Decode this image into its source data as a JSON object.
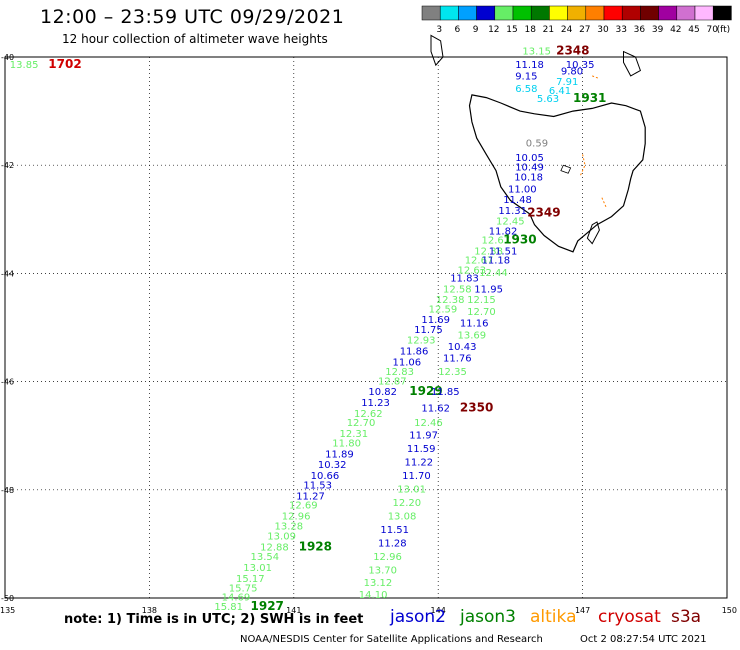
{
  "header": {
    "title": "12:00 – 23:59 UTC 09/29/2021",
    "subtitle": "12 hour collection of altimeter wave heights"
  },
  "legend": {
    "unit": "(ft)",
    "steps": [
      {
        "label": "3",
        "color": "#808080"
      },
      {
        "label": "6",
        "color": "#00e5ee"
      },
      {
        "label": "9",
        "color": "#00a0ff"
      },
      {
        "label": "12",
        "color": "#0000d0"
      },
      {
        "label": "15",
        "color": "#66ee66"
      },
      {
        "label": "18",
        "color": "#00c000"
      },
      {
        "label": "21",
        "color": "#007800"
      },
      {
        "label": "24",
        "color": "#ffff00"
      },
      {
        "label": "27",
        "color": "#f0b000"
      },
      {
        "label": "30",
        "color": "#ff7f00"
      },
      {
        "label": "33",
        "color": "#ff0000"
      },
      {
        "label": "36",
        "color": "#b00000"
      },
      {
        "label": "39",
        "color": "#700000"
      },
      {
        "label": "42",
        "color": "#a000a0"
      },
      {
        "label": "45",
        "color": "#d070d0"
      },
      {
        "label": "70",
        "color": "#ffb8ff"
      },
      {
        "label": "",
        "color": "#000000"
      }
    ]
  },
  "map": {
    "lat_labels": [
      "-40",
      "-42",
      "-44",
      "-46",
      "-48",
      "-50"
    ],
    "lon_labels": [
      "135",
      "138",
      "141",
      "144",
      "147",
      "150"
    ],
    "colors": {
      "track_green": "#66ee66",
      "track_blue": "#0000d0",
      "cyan": "#00d0f0",
      "grey": "#808080",
      "time_green": "#008000",
      "time_red": "#800000",
      "time_red2": "#d00000",
      "coast_orange": "#ff7f00"
    },
    "labels": [
      {
        "text": "13.85",
        "lat": -40.2,
        "lon": 135.1,
        "c": "track_green"
      },
      {
        "text": "1702",
        "lat": -40.2,
        "lon": 135.9,
        "c": "time_red2",
        "bold": true
      },
      {
        "text": "13.15",
        "lat": -39.95,
        "lon": 145.75,
        "c": "track_green"
      },
      {
        "text": "2348",
        "lat": -39.95,
        "lon": 146.45,
        "c": "time_red",
        "bold": true
      },
      {
        "text": "11.18",
        "lat": -40.2,
        "lon": 145.6,
        "c": "track_blue"
      },
      {
        "text": "10.35",
        "lat": -40.2,
        "lon": 146.65,
        "c": "track_blue"
      },
      {
        "text": "9.15",
        "lat": -40.42,
        "lon": 145.6,
        "c": "track_blue"
      },
      {
        "text": "9.80",
        "lat": -40.32,
        "lon": 146.55,
        "c": "track_blue"
      },
      {
        "text": "7.91",
        "lat": -40.52,
        "lon": 146.45,
        "c": "cyan"
      },
      {
        "text": "6.58",
        "lat": -40.65,
        "lon": 145.6,
        "c": "cyan"
      },
      {
        "text": "6.41",
        "lat": -40.68,
        "lon": 146.3,
        "c": "cyan"
      },
      {
        "text": "5.63",
        "lat": -40.83,
        "lon": 146.05,
        "c": "cyan"
      },
      {
        "text": "1931",
        "lat": -40.83,
        "lon": 146.8,
        "c": "time_green",
        "bold": true
      },
      {
        "text": "0.59",
        "lat": -41.65,
        "lon": 145.82,
        "c": "grey"
      },
      {
        "text": "10.05",
        "lat": -41.92,
        "lon": 145.6,
        "c": "track_blue"
      },
      {
        "text": "10.49",
        "lat": -42.1,
        "lon": 145.6,
        "c": "track_blue"
      },
      {
        "text": "10.18",
        "lat": -42.28,
        "lon": 145.58,
        "c": "track_blue"
      },
      {
        "text": "11.00",
        "lat": -42.5,
        "lon": 145.45,
        "c": "track_blue"
      },
      {
        "text": "11.48",
        "lat": -42.7,
        "lon": 145.35,
        "c": "track_blue"
      },
      {
        "text": "11.31",
        "lat": -42.9,
        "lon": 145.25,
        "c": "track_blue"
      },
      {
        "text": "2349",
        "lat": -42.95,
        "lon": 145.85,
        "c": "time_red",
        "bold": true
      },
      {
        "text": "12.45",
        "lat": -43.1,
        "lon": 145.2,
        "c": "track_green"
      },
      {
        "text": "11.82",
        "lat": -43.28,
        "lon": 145.05,
        "c": "track_blue"
      },
      {
        "text": "12.67",
        "lat": -43.45,
        "lon": 144.9,
        "c": "track_green"
      },
      {
        "text": "1930",
        "lat": -43.45,
        "lon": 145.35,
        "c": "time_green",
        "bold": true
      },
      {
        "text": "12.38",
        "lat": -43.65,
        "lon": 144.75,
        "c": "track_green"
      },
      {
        "text": "11.51",
        "lat": -43.65,
        "lon": 145.05,
        "c": "track_blue"
      },
      {
        "text": "12.67",
        "lat": -43.82,
        "lon": 144.55,
        "c": "track_green"
      },
      {
        "text": "11.18",
        "lat": -43.82,
        "lon": 144.9,
        "c": "track_blue"
      },
      {
        "text": "12.63",
        "lat": -44.0,
        "lon": 144.4,
        "c": "track_green"
      },
      {
        "text": "12.44",
        "lat": -44.05,
        "lon": 144.85,
        "c": "track_green"
      },
      {
        "text": "11.83",
        "lat": -44.15,
        "lon": 144.25,
        "c": "track_blue"
      },
      {
        "text": "12.58",
        "lat": -44.35,
        "lon": 144.1,
        "c": "track_green"
      },
      {
        "text": "11.95",
        "lat": -44.35,
        "lon": 144.75,
        "c": "track_blue"
      },
      {
        "text": "12.38",
        "lat": -44.55,
        "lon": 143.95,
        "c": "track_green"
      },
      {
        "text": "12.15",
        "lat": -44.55,
        "lon": 144.6,
        "c": "track_green"
      },
      {
        "text": "12.59",
        "lat": -44.72,
        "lon": 143.8,
        "c": "track_green"
      },
      {
        "text": "12.70",
        "lat": -44.77,
        "lon": 144.6,
        "c": "track_green"
      },
      {
        "text": "11.69",
        "lat": -44.92,
        "lon": 143.65,
        "c": "track_blue"
      },
      {
        "text": "11.16",
        "lat": -44.98,
        "lon": 144.45,
        "c": "track_blue"
      },
      {
        "text": "11.75",
        "lat": -45.1,
        "lon": 143.5,
        "c": "track_blue"
      },
      {
        "text": "13.69",
        "lat": -45.2,
        "lon": 144.4,
        "c": "track_green"
      },
      {
        "text": "12.93",
        "lat": -45.3,
        "lon": 143.35,
        "c": "track_green"
      },
      {
        "text": "10.43",
        "lat": -45.42,
        "lon": 144.2,
        "c": "track_blue"
      },
      {
        "text": "11.86",
        "lat": -45.5,
        "lon": 143.2,
        "c": "track_blue"
      },
      {
        "text": "11.06",
        "lat": -45.7,
        "lon": 143.05,
        "c": "track_blue"
      },
      {
        "text": "11.76",
        "lat": -45.63,
        "lon": 144.1,
        "c": "track_blue"
      },
      {
        "text": "12.83",
        "lat": -45.88,
        "lon": 142.9,
        "c": "track_green"
      },
      {
        "text": "12.35",
        "lat": -45.88,
        "lon": 144.0,
        "c": "track_green"
      },
      {
        "text": "12.87",
        "lat": -46.05,
        "lon": 142.75,
        "c": "track_green"
      },
      {
        "text": "10.82",
        "lat": -46.25,
        "lon": 142.55,
        "c": "track_blue"
      },
      {
        "text": "1929",
        "lat": -46.25,
        "lon": 143.4,
        "c": "time_green",
        "bold": true
      },
      {
        "text": "11.85",
        "lat": -46.25,
        "lon": 143.85,
        "c": "track_blue"
      },
      {
        "text": "11.23",
        "lat": -46.45,
        "lon": 142.4,
        "c": "track_blue"
      },
      {
        "text": "11.62",
        "lat": -46.55,
        "lon": 143.65,
        "c": "track_blue"
      },
      {
        "text": "2350",
        "lat": -46.55,
        "lon": 144.45,
        "c": "time_red",
        "bold": true
      },
      {
        "text": "12.62",
        "lat": -46.65,
        "lon": 142.25,
        "c": "track_green"
      },
      {
        "text": "12.70",
        "lat": -46.82,
        "lon": 142.1,
        "c": "track_green"
      },
      {
        "text": "12.46",
        "lat": -46.82,
        "lon": 143.5,
        "c": "track_green"
      },
      {
        "text": "12.31",
        "lat": -47.02,
        "lon": 141.95,
        "c": "track_green"
      },
      {
        "text": "11.97",
        "lat": -47.05,
        "lon": 143.4,
        "c": "track_blue"
      },
      {
        "text": "11.80",
        "lat": -47.2,
        "lon": 141.8,
        "c": "track_green"
      },
      {
        "text": "11.59",
        "lat": -47.3,
        "lon": 143.35,
        "c": "track_blue"
      },
      {
        "text": "11.89",
        "lat": -47.4,
        "lon": 141.65,
        "c": "track_blue"
      },
      {
        "text": "10.32",
        "lat": -47.6,
        "lon": 141.5,
        "c": "track_blue"
      },
      {
        "text": "11.22",
        "lat": -47.55,
        "lon": 143.3,
        "c": "track_blue"
      },
      {
        "text": "10.66",
        "lat": -47.8,
        "lon": 141.35,
        "c": "track_blue"
      },
      {
        "text": "11.70",
        "lat": -47.8,
        "lon": 143.25,
        "c": "track_blue"
      },
      {
        "text": "11.53",
        "lat": -47.98,
        "lon": 141.2,
        "c": "track_blue"
      },
      {
        "text": "13.01",
        "lat": -48.05,
        "lon": 143.15,
        "c": "track_green"
      },
      {
        "text": "11.27",
        "lat": -48.18,
        "lon": 141.05,
        "c": "track_blue"
      },
      {
        "text": "12.69",
        "lat": -48.35,
        "lon": 140.9,
        "c": "track_green"
      },
      {
        "text": "12.20",
        "lat": -48.3,
        "lon": 143.05,
        "c": "track_green"
      },
      {
        "text": "12.96",
        "lat": -48.55,
        "lon": 140.75,
        "c": "track_green"
      },
      {
        "text": "13.08",
        "lat": -48.55,
        "lon": 142.95,
        "c": "track_green"
      },
      {
        "text": "13.28",
        "lat": -48.73,
        "lon": 140.6,
        "c": "track_green"
      },
      {
        "text": "11.51",
        "lat": -48.8,
        "lon": 142.8,
        "c": "track_blue"
      },
      {
        "text": "13.09",
        "lat": -48.92,
        "lon": 140.45,
        "c": "track_green"
      },
      {
        "text": "12.88",
        "lat": -49.12,
        "lon": 140.3,
        "c": "track_green"
      },
      {
        "text": "1928",
        "lat": -49.12,
        "lon": 141.1,
        "c": "time_green",
        "bold": true
      },
      {
        "text": "11.28",
        "lat": -49.05,
        "lon": 142.75,
        "c": "track_blue"
      },
      {
        "text": "13.54",
        "lat": -49.3,
        "lon": 140.1,
        "c": "track_green"
      },
      {
        "text": "12.96",
        "lat": -49.3,
        "lon": 142.65,
        "c": "track_green"
      },
      {
        "text": "13.01",
        "lat": -49.5,
        "lon": 139.95,
        "c": "track_green"
      },
      {
        "text": "13.70",
        "lat": -49.55,
        "lon": 142.55,
        "c": "track_green"
      },
      {
        "text": "15.17",
        "lat": -49.7,
        "lon": 139.8,
        "c": "track_green"
      },
      {
        "text": "13.12",
        "lat": -49.78,
        "lon": 142.45,
        "c": "track_green"
      },
      {
        "text": "15.75",
        "lat": -49.88,
        "lon": 139.65,
        "c": "track_green"
      },
      {
        "text": "14.10",
        "lat": -50.0,
        "lon": 142.35,
        "c": "track_green"
      },
      {
        "text": "14.69",
        "lat": -50.05,
        "lon": 139.5,
        "c": "track_green"
      },
      {
        "text": "15.81",
        "lat": -50.22,
        "lon": 139.35,
        "c": "track_green"
      },
      {
        "text": "1927",
        "lat": -50.22,
        "lon": 140.1,
        "c": "time_green",
        "bold": true
      }
    ]
  },
  "footer": {
    "note": "note: 1) Time is in UTC; 2) SWH is in feet",
    "satellites": [
      {
        "name": "jason2",
        "color": "#0000d0"
      },
      {
        "name": "jason3",
        "color": "#008000"
      },
      {
        "name": "altika",
        "color": "#ff9a00"
      },
      {
        "name": "cryosat",
        "color": "#d00000"
      },
      {
        "name": "s3a",
        "color": "#800000"
      }
    ],
    "credit": "NOAA/NESDIS Center for Satellite Applications and Research",
    "timestamp": "Oct  2 08:27:54 UTC 2021"
  }
}
